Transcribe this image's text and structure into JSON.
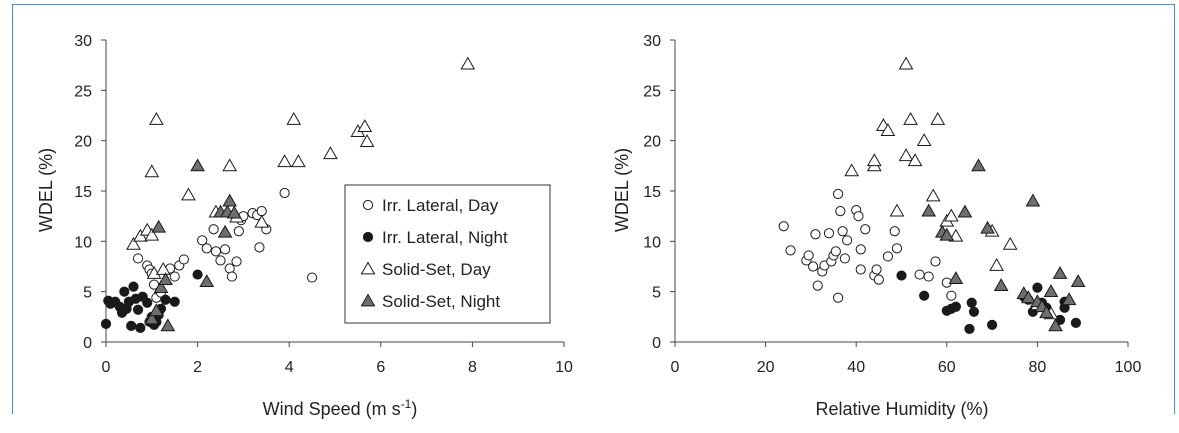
{
  "chart_data": [
    {
      "type": "scatter",
      "xlabel": "Wind Speed (m s",
      "xlabel_sup": "-1",
      "xlabel_close": ")",
      "ylabel": "WDEL (%)",
      "xlim": [
        0,
        10
      ],
      "ylim": [
        0,
        30
      ],
      "xticks": [
        "0",
        "2",
        "4",
        "6",
        "8",
        "10"
      ],
      "yticks": [
        "0",
        "5",
        "10",
        "15",
        "20",
        "25",
        "30"
      ],
      "legend": "inside-right",
      "series": [
        {
          "name": "Irr. Lateral, Day",
          "marker": "circle-open",
          "points": [
            [
              0.7,
              8.3
            ],
            [
              0.9,
              7.6
            ],
            [
              0.95,
              7.2
            ],
            [
              1.0,
              6.8
            ],
            [
              1.05,
              5.7
            ],
            [
              1.1,
              4.4
            ],
            [
              1.2,
              4.9
            ],
            [
              1.4,
              7.3
            ],
            [
              1.5,
              6.5
            ],
            [
              1.6,
              7.6
            ],
            [
              1.7,
              8.2
            ],
            [
              2.1,
              10.1
            ],
            [
              2.2,
              9.3
            ],
            [
              2.35,
              11.2
            ],
            [
              2.4,
              9.0
            ],
            [
              2.5,
              8.1
            ],
            [
              2.6,
              9.2
            ],
            [
              2.7,
              7.3
            ],
            [
              2.75,
              6.5
            ],
            [
              2.85,
              8.0
            ],
            [
              2.9,
              11.0
            ],
            [
              2.95,
              12.1
            ],
            [
              3.0,
              12.5
            ],
            [
              3.2,
              12.8
            ],
            [
              3.3,
              12.6
            ],
            [
              3.35,
              9.4
            ],
            [
              3.4,
              13.0
            ],
            [
              3.5,
              11.2
            ],
            [
              3.9,
              14.8
            ],
            [
              4.5,
              6.4
            ]
          ]
        },
        {
          "name": "Irr. Lateral, Night",
          "marker": "circle-filled",
          "points": [
            [
              0.0,
              1.8
            ],
            [
              0.05,
              4.1
            ],
            [
              0.1,
              3.8
            ],
            [
              0.2,
              4.0
            ],
            [
              0.3,
              3.5
            ],
            [
              0.35,
              2.9
            ],
            [
              0.4,
              5.0
            ],
            [
              0.45,
              3.3
            ],
            [
              0.5,
              4.0
            ],
            [
              0.55,
              1.6
            ],
            [
              0.6,
              5.5
            ],
            [
              0.65,
              4.3
            ],
            [
              0.7,
              3.2
            ],
            [
              0.75,
              1.4
            ],
            [
              0.8,
              4.5
            ],
            [
              0.9,
              3.9
            ],
            [
              0.95,
              2.0
            ],
            [
              1.0,
              2.5
            ],
            [
              1.05,
              1.7
            ],
            [
              1.1,
              2.0
            ],
            [
              1.15,
              2.7
            ],
            [
              1.2,
              3.3
            ],
            [
              1.3,
              4.2
            ],
            [
              1.5,
              4.0
            ],
            [
              2.0,
              6.7
            ]
          ]
        },
        {
          "name": "Solid-Set, Day",
          "marker": "triangle-open",
          "points": [
            [
              0.6,
              9.7
            ],
            [
              0.75,
              10.5
            ],
            [
              0.9,
              11.1
            ],
            [
              1.0,
              16.9
            ],
            [
              1.0,
              10.6
            ],
            [
              1.05,
              6.8
            ],
            [
              1.1,
              22.1
            ],
            [
              1.25,
              7.2
            ],
            [
              1.8,
              14.6
            ],
            [
              2.4,
              12.9
            ],
            [
              2.7,
              17.5
            ],
            [
              2.85,
              12.4
            ],
            [
              3.4,
              11.9
            ],
            [
              3.9,
              17.9
            ],
            [
              4.1,
              22.1
            ],
            [
              4.2,
              17.9
            ],
            [
              4.9,
              18.7
            ],
            [
              5.5,
              20.9
            ],
            [
              5.65,
              21.4
            ],
            [
              5.7,
              19.9
            ],
            [
              7.9,
              27.6
            ]
          ]
        },
        {
          "name": "Solid-Set, Night",
          "marker": "triangle-filled",
          "points": [
            [
              1.0,
              2.3
            ],
            [
              1.1,
              3.1
            ],
            [
              1.15,
              11.4
            ],
            [
              1.2,
              5.4
            ],
            [
              1.3,
              6.2
            ],
            [
              1.35,
              1.6
            ],
            [
              2.0,
              17.5
            ],
            [
              2.2,
              6.0
            ],
            [
              2.5,
              12.9
            ],
            [
              2.6,
              10.9
            ],
            [
              2.65,
              12.9
            ],
            [
              2.7,
              14.0
            ],
            [
              2.8,
              12.8
            ]
          ]
        }
      ]
    },
    {
      "type": "scatter",
      "xlabel": "Relative Humidity (%)",
      "ylabel": "WDEL (%)",
      "xlim": [
        0,
        100
      ],
      "ylim": [
        0,
        30
      ],
      "xticks": [
        "0",
        "20",
        "40",
        "60",
        "80",
        "100"
      ],
      "yticks": [
        "0",
        "5",
        "10",
        "15",
        "20",
        "25",
        "30"
      ],
      "series": [
        {
          "name": "Irr. Lateral, Day",
          "marker": "circle-open",
          "points": [
            [
              24,
              11.5
            ],
            [
              25.5,
              9.1
            ],
            [
              29,
              8.1
            ],
            [
              29.5,
              8.6
            ],
            [
              30.5,
              7.5
            ],
            [
              31,
              10.7
            ],
            [
              31.5,
              5.6
            ],
            [
              32.5,
              7.0
            ],
            [
              33,
              7.6
            ],
            [
              34,
              10.8
            ],
            [
              34.5,
              8.0
            ],
            [
              35,
              8.6
            ],
            [
              35.5,
              9.0
            ],
            [
              36,
              4.4
            ],
            [
              36,
              14.7
            ],
            [
              36.5,
              13.0
            ],
            [
              37,
              11.0
            ],
            [
              37.5,
              8.3
            ],
            [
              38,
              10.1
            ],
            [
              40,
              13.1
            ],
            [
              40.5,
              12.5
            ],
            [
              41,
              9.2
            ],
            [
              41,
              7.2
            ],
            [
              42,
              11.2
            ],
            [
              44,
              6.6
            ],
            [
              44.5,
              7.2
            ],
            [
              45,
              6.2
            ],
            [
              47,
              8.5
            ],
            [
              48.5,
              11.0
            ],
            [
              49,
              9.3
            ],
            [
              54,
              6.7
            ],
            [
              56,
              6.5
            ],
            [
              57.5,
              8.0
            ],
            [
              60,
              5.9
            ],
            [
              61,
              4.6
            ]
          ]
        },
        {
          "name": "Irr. Lateral, Night",
          "marker": "circle-filled",
          "points": [
            [
              50,
              6.6
            ],
            [
              55,
              4.6
            ],
            [
              60,
              3.1
            ],
            [
              61,
              3.3
            ],
            [
              62,
              3.5
            ],
            [
              65,
              1.3
            ],
            [
              65.5,
              3.9
            ],
            [
              66,
              3.0
            ],
            [
              70,
              1.7
            ],
            [
              77,
              4.5
            ],
            [
              78,
              4.2
            ],
            [
              79,
              3.0
            ],
            [
              80,
              5.4
            ],
            [
              81,
              3.9
            ],
            [
              82,
              3.4
            ],
            [
              85,
              2.2
            ],
            [
              86,
              3.4
            ],
            [
              86,
              4.0
            ],
            [
              88.5,
              1.9
            ]
          ]
        },
        {
          "name": "Solid-Set, Day",
          "marker": "triangle-open",
          "points": [
            [
              39,
              17.0
            ],
            [
              44,
              17.5
            ],
            [
              44,
              18.0
            ],
            [
              46,
              21.5
            ],
            [
              47,
              21.0
            ],
            [
              49,
              13.0
            ],
            [
              51,
              18.5
            ],
            [
              51,
              27.6
            ],
            [
              52,
              22.1
            ],
            [
              53,
              18.0
            ],
            [
              55,
              20.0
            ],
            [
              57,
              14.5
            ],
            [
              58,
              22.1
            ],
            [
              60,
              12.0
            ],
            [
              61,
              12.5
            ],
            [
              62,
              10.5
            ],
            [
              70,
              11.0
            ],
            [
              71,
              7.6
            ],
            [
              74,
              9.7
            ],
            [
              80,
              3.7
            ],
            [
              83,
              2.8
            ]
          ]
        },
        {
          "name": "Solid-Set, Night",
          "marker": "triangle-filled",
          "points": [
            [
              56,
              13.0
            ],
            [
              59,
              10.9
            ],
            [
              60,
              10.6
            ],
            [
              62,
              6.3
            ],
            [
              64,
              12.9
            ],
            [
              67,
              17.5
            ],
            [
              69,
              11.3
            ],
            [
              72,
              5.6
            ],
            [
              77,
              4.8
            ],
            [
              78,
              4.4
            ],
            [
              79,
              14.0
            ],
            [
              80,
              4.0
            ],
            [
              81,
              3.5
            ],
            [
              82,
              2.9
            ],
            [
              83,
              5.0
            ],
            [
              84,
              1.6
            ],
            [
              85,
              6.8
            ],
            [
              87,
              4.2
            ],
            [
              89,
              6.0
            ]
          ]
        }
      ]
    }
  ],
  "colors": {
    "frame_border": "#5b87c5",
    "axis": "#444444",
    "marker_fill": "#1a1a1a",
    "triangle_fill": "#6e6e6e"
  }
}
